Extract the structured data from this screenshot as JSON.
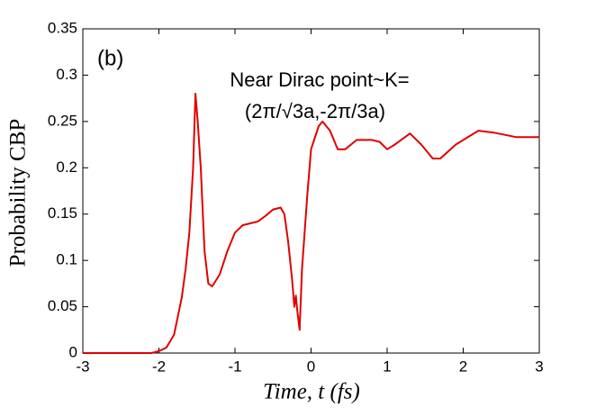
{
  "chart_data": {
    "type": "line",
    "xlabel": "Time, t (fs)",
    "ylabel": "Probability CBP",
    "annotations": [
      "(b)",
      "Near Dirac point~K=",
      "(2π/√3a,-2π/3a)"
    ],
    "xlim": [
      -3,
      3
    ],
    "xticks": [
      -3,
      -2,
      -1,
      0,
      1,
      2,
      3
    ],
    "ylim": [
      0,
      0.35
    ],
    "yticks": [
      0,
      0.05,
      0.1,
      0.15,
      0.2,
      0.25,
      0.3,
      0.35
    ],
    "series": [
      {
        "color": "#e00000",
        "x": [
          -3,
          -2.5,
          -2.1,
          -2.0,
          -1.9,
          -1.8,
          -1.7,
          -1.65,
          -1.6,
          -1.55,
          -1.52,
          -1.49,
          -1.45,
          -1.4,
          -1.35,
          -1.3,
          -1.2,
          -1.1,
          -1.0,
          -0.9,
          -0.8,
          -0.7,
          -0.6,
          -0.5,
          -0.4,
          -0.35,
          -0.3,
          -0.25,
          -0.22,
          -0.2,
          -0.18,
          -0.15,
          -0.12,
          -0.05,
          0,
          0.1,
          0.15,
          0.25,
          0.35,
          0.45,
          0.6,
          0.8,
          0.9,
          1.0,
          1.1,
          1.3,
          1.45,
          1.6,
          1.7,
          1.9,
          2.2,
          2.4,
          2.7,
          3
        ],
        "values": [
          0,
          0,
          0,
          0.002,
          0.006,
          0.02,
          0.06,
          0.09,
          0.13,
          0.2,
          0.28,
          0.25,
          0.2,
          0.11,
          0.075,
          0.072,
          0.085,
          0.11,
          0.13,
          0.138,
          0.14,
          0.142,
          0.148,
          0.155,
          0.157,
          0.15,
          0.12,
          0.08,
          0.05,
          0.062,
          0.045,
          0.025,
          0.09,
          0.17,
          0.22,
          0.245,
          0.25,
          0.24,
          0.22,
          0.22,
          0.23,
          0.23,
          0.228,
          0.22,
          0.225,
          0.237,
          0.225,
          0.21,
          0.21,
          0.225,
          0.24,
          0.238,
          0.233,
          0.233
        ]
      }
    ]
  }
}
